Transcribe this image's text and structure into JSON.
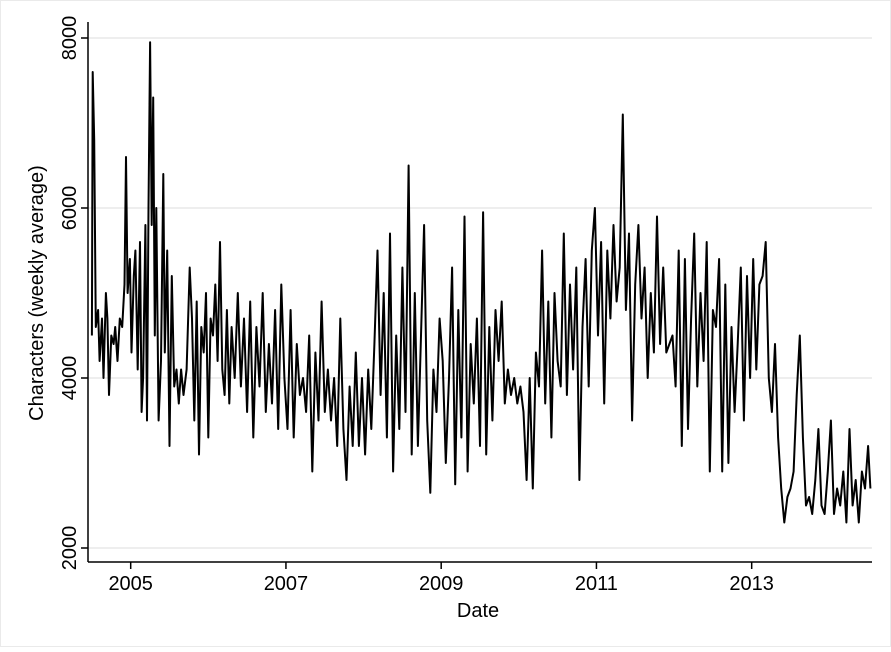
{
  "colors": {
    "background": "#ffffff",
    "line": "#000000",
    "grid": "#dcdcdc",
    "axis": "#000000"
  },
  "chart_data": {
    "type": "line",
    "title": "",
    "xlabel": "Date",
    "ylabel": "Characters (weekly average)",
    "xlim": [
      2004.45,
      2014.55
    ],
    "ylim": [
      2000,
      8000
    ],
    "x_ticks": [
      2005,
      2007,
      2009,
      2011,
      2013
    ],
    "x_tick_labels": [
      "2005",
      "2007",
      "2009",
      "2011",
      "2013"
    ],
    "y_ticks": [
      2000,
      4000,
      6000,
      8000
    ],
    "y_tick_labels": [
      "2000",
      "4000",
      "6000",
      "8000"
    ],
    "grid": "horizontal",
    "legend": "none",
    "series": [
      {
        "values": [
          [
            2004.5,
            4500
          ],
          [
            2004.51,
            7600
          ],
          [
            2004.53,
            6800
          ],
          [
            2004.55,
            4600
          ],
          [
            2004.58,
            4800
          ],
          [
            2004.6,
            4200
          ],
          [
            2004.63,
            4700
          ],
          [
            2004.65,
            4000
          ],
          [
            2004.68,
            5000
          ],
          [
            2004.7,
            4700
          ],
          [
            2004.72,
            3800
          ],
          [
            2004.75,
            4500
          ],
          [
            2004.78,
            4400
          ],
          [
            2004.8,
            4600
          ],
          [
            2004.83,
            4200
          ],
          [
            2004.86,
            4700
          ],
          [
            2004.89,
            4600
          ],
          [
            2004.92,
            5100
          ],
          [
            2004.94,
            6600
          ],
          [
            2004.96,
            5000
          ],
          [
            2004.99,
            5400
          ],
          [
            2005.01,
            4300
          ],
          [
            2005.04,
            5200
          ],
          [
            2005.06,
            5500
          ],
          [
            2005.09,
            4100
          ],
          [
            2005.12,
            5600
          ],
          [
            2005.14,
            3600
          ],
          [
            2005.16,
            4000
          ],
          [
            2005.19,
            5800
          ],
          [
            2005.21,
            3500
          ],
          [
            2005.23,
            6000
          ],
          [
            2005.25,
            7950
          ],
          [
            2005.27,
            5800
          ],
          [
            2005.29,
            7300
          ],
          [
            2005.31,
            4500
          ],
          [
            2005.33,
            6000
          ],
          [
            2005.36,
            3500
          ],
          [
            2005.39,
            4200
          ],
          [
            2005.42,
            6400
          ],
          [
            2005.44,
            4300
          ],
          [
            2005.47,
            5500
          ],
          [
            2005.5,
            3200
          ],
          [
            2005.53,
            5200
          ],
          [
            2005.56,
            3900
          ],
          [
            2005.59,
            4100
          ],
          [
            2005.62,
            3700
          ],
          [
            2005.65,
            4100
          ],
          [
            2005.68,
            3800
          ],
          [
            2005.72,
            4100
          ],
          [
            2005.76,
            5300
          ],
          [
            2005.79,
            4700
          ],
          [
            2005.82,
            3500
          ],
          [
            2005.85,
            4900
          ],
          [
            2005.88,
            3100
          ],
          [
            2005.91,
            4600
          ],
          [
            2005.94,
            4300
          ],
          [
            2005.97,
            5000
          ],
          [
            2006.0,
            3300
          ],
          [
            2006.03,
            4700
          ],
          [
            2006.06,
            4500
          ],
          [
            2006.09,
            5100
          ],
          [
            2006.12,
            4200
          ],
          [
            2006.15,
            5600
          ],
          [
            2006.18,
            4100
          ],
          [
            2006.21,
            3800
          ],
          [
            2006.24,
            4800
          ],
          [
            2006.27,
            3700
          ],
          [
            2006.3,
            4600
          ],
          [
            2006.34,
            4000
          ],
          [
            2006.38,
            5000
          ],
          [
            2006.42,
            3900
          ],
          [
            2006.46,
            4700
          ],
          [
            2006.5,
            3600
          ],
          [
            2006.54,
            4900
          ],
          [
            2006.58,
            3300
          ],
          [
            2006.62,
            4600
          ],
          [
            2006.66,
            3900
          ],
          [
            2006.7,
            5000
          ],
          [
            2006.74,
            3600
          ],
          [
            2006.78,
            4400
          ],
          [
            2006.82,
            3700
          ],
          [
            2006.86,
            4800
          ],
          [
            2006.9,
            3400
          ],
          [
            2006.94,
            5100
          ],
          [
            2006.98,
            4000
          ],
          [
            2007.02,
            3400
          ],
          [
            2007.06,
            4800
          ],
          [
            2007.1,
            3300
          ],
          [
            2007.14,
            4400
          ],
          [
            2007.18,
            3800
          ],
          [
            2007.22,
            4000
          ],
          [
            2007.26,
            3600
          ],
          [
            2007.3,
            4500
          ],
          [
            2007.34,
            2900
          ],
          [
            2007.38,
            4300
          ],
          [
            2007.42,
            3500
          ],
          [
            2007.46,
            4900
          ],
          [
            2007.5,
            3600
          ],
          [
            2007.54,
            4100
          ],
          [
            2007.58,
            3500
          ],
          [
            2007.62,
            4000
          ],
          [
            2007.66,
            3200
          ],
          [
            2007.7,
            4700
          ],
          [
            2007.74,
            3400
          ],
          [
            2007.78,
            2800
          ],
          [
            2007.82,
            3900
          ],
          [
            2007.86,
            3200
          ],
          [
            2007.9,
            4300
          ],
          [
            2007.94,
            3200
          ],
          [
            2007.98,
            4000
          ],
          [
            2008.02,
            3100
          ],
          [
            2008.06,
            4100
          ],
          [
            2008.1,
            3400
          ],
          [
            2008.14,
            4400
          ],
          [
            2008.18,
            5500
          ],
          [
            2008.22,
            3800
          ],
          [
            2008.26,
            5000
          ],
          [
            2008.3,
            3300
          ],
          [
            2008.34,
            5700
          ],
          [
            2008.38,
            2900
          ],
          [
            2008.42,
            4500
          ],
          [
            2008.46,
            3400
          ],
          [
            2008.5,
            5300
          ],
          [
            2008.54,
            3600
          ],
          [
            2008.58,
            6500
          ],
          [
            2008.62,
            3100
          ],
          [
            2008.66,
            5000
          ],
          [
            2008.7,
            3200
          ],
          [
            2008.74,
            4500
          ],
          [
            2008.78,
            5800
          ],
          [
            2008.82,
            3500
          ],
          [
            2008.86,
            2650
          ],
          [
            2008.9,
            4100
          ],
          [
            2008.94,
            3600
          ],
          [
            2008.98,
            4700
          ],
          [
            2009.02,
            4200
          ],
          [
            2009.06,
            3000
          ],
          [
            2009.1,
            4000
          ],
          [
            2009.14,
            5300
          ],
          [
            2009.18,
            2750
          ],
          [
            2009.22,
            4800
          ],
          [
            2009.26,
            3300
          ],
          [
            2009.3,
            5900
          ],
          [
            2009.34,
            2900
          ],
          [
            2009.38,
            4400
          ],
          [
            2009.42,
            3700
          ],
          [
            2009.46,
            4700
          ],
          [
            2009.5,
            3200
          ],
          [
            2009.54,
            5950
          ],
          [
            2009.58,
            3100
          ],
          [
            2009.62,
            4600
          ],
          [
            2009.66,
            3500
          ],
          [
            2009.7,
            4800
          ],
          [
            2009.74,
            4200
          ],
          [
            2009.78,
            4900
          ],
          [
            2009.82,
            3700
          ],
          [
            2009.86,
            4100
          ],
          [
            2009.9,
            3800
          ],
          [
            2009.94,
            4000
          ],
          [
            2009.98,
            3700
          ],
          [
            2010.02,
            3900
          ],
          [
            2010.06,
            3600
          ],
          [
            2010.1,
            2800
          ],
          [
            2010.14,
            4000
          ],
          [
            2010.18,
            2700
          ],
          [
            2010.22,
            4300
          ],
          [
            2010.26,
            3900
          ],
          [
            2010.3,
            5500
          ],
          [
            2010.34,
            3700
          ],
          [
            2010.38,
            4900
          ],
          [
            2010.42,
            3300
          ],
          [
            2010.46,
            5000
          ],
          [
            2010.5,
            4200
          ],
          [
            2010.54,
            3900
          ],
          [
            2010.58,
            5700
          ],
          [
            2010.62,
            3800
          ],
          [
            2010.66,
            5100
          ],
          [
            2010.7,
            4100
          ],
          [
            2010.74,
            5300
          ],
          [
            2010.78,
            2800
          ],
          [
            2010.82,
            4600
          ],
          [
            2010.86,
            5400
          ],
          [
            2010.9,
            3900
          ],
          [
            2010.94,
            5500
          ],
          [
            2010.98,
            6000
          ],
          [
            2011.02,
            4500
          ],
          [
            2011.06,
            5600
          ],
          [
            2011.1,
            3700
          ],
          [
            2011.14,
            5500
          ],
          [
            2011.18,
            4700
          ],
          [
            2011.22,
            5800
          ],
          [
            2011.26,
            4900
          ],
          [
            2011.3,
            5300
          ],
          [
            2011.34,
            7100
          ],
          [
            2011.38,
            4800
          ],
          [
            2011.42,
            5700
          ],
          [
            2011.46,
            3500
          ],
          [
            2011.5,
            5100
          ],
          [
            2011.54,
            5800
          ],
          [
            2011.58,
            4700
          ],
          [
            2011.62,
            5300
          ],
          [
            2011.66,
            4000
          ],
          [
            2011.7,
            5000
          ],
          [
            2011.74,
            4300
          ],
          [
            2011.78,
            5900
          ],
          [
            2011.82,
            4400
          ],
          [
            2011.86,
            5300
          ],
          [
            2011.9,
            4300
          ],
          [
            2011.94,
            4400
          ],
          [
            2011.98,
            4500
          ],
          [
            2012.02,
            3900
          ],
          [
            2012.06,
            5500
          ],
          [
            2012.1,
            3200
          ],
          [
            2012.14,
            5400
          ],
          [
            2012.18,
            3400
          ],
          [
            2012.22,
            4700
          ],
          [
            2012.26,
            5700
          ],
          [
            2012.3,
            3900
          ],
          [
            2012.34,
            5000
          ],
          [
            2012.38,
            4200
          ],
          [
            2012.42,
            5600
          ],
          [
            2012.46,
            2900
          ],
          [
            2012.5,
            4800
          ],
          [
            2012.54,
            4600
          ],
          [
            2012.58,
            5400
          ],
          [
            2012.62,
            2900
          ],
          [
            2012.66,
            5100
          ],
          [
            2012.7,
            3000
          ],
          [
            2012.74,
            4600
          ],
          [
            2012.78,
            3600
          ],
          [
            2012.82,
            4400
          ],
          [
            2012.86,
            5300
          ],
          [
            2012.9,
            3500
          ],
          [
            2012.94,
            5200
          ],
          [
            2012.98,
            4000
          ],
          [
            2013.02,
            5400
          ],
          [
            2013.06,
            4100
          ],
          [
            2013.1,
            5100
          ],
          [
            2013.14,
            5200
          ],
          [
            2013.18,
            5600
          ],
          [
            2013.22,
            4000
          ],
          [
            2013.26,
            3600
          ],
          [
            2013.3,
            4400
          ],
          [
            2013.34,
            3300
          ],
          [
            2013.38,
            2700
          ],
          [
            2013.42,
            2300
          ],
          [
            2013.46,
            2600
          ],
          [
            2013.5,
            2700
          ],
          [
            2013.54,
            2900
          ],
          [
            2013.58,
            3800
          ],
          [
            2013.62,
            4500
          ],
          [
            2013.66,
            3300
          ],
          [
            2013.7,
            2500
          ],
          [
            2013.74,
            2600
          ],
          [
            2013.78,
            2400
          ],
          [
            2013.82,
            2800
          ],
          [
            2013.86,
            3400
          ],
          [
            2013.9,
            2500
          ],
          [
            2013.94,
            2400
          ],
          [
            2013.98,
            2900
          ],
          [
            2014.02,
            3500
          ],
          [
            2014.06,
            2400
          ],
          [
            2014.1,
            2700
          ],
          [
            2014.14,
            2500
          ],
          [
            2014.18,
            2900
          ],
          [
            2014.22,
            2300
          ],
          [
            2014.26,
            3400
          ],
          [
            2014.3,
            2500
          ],
          [
            2014.34,
            2800
          ],
          [
            2014.38,
            2300
          ],
          [
            2014.42,
            2900
          ],
          [
            2014.46,
            2700
          ],
          [
            2014.5,
            3200
          ],
          [
            2014.53,
            2700
          ]
        ]
      }
    ]
  }
}
